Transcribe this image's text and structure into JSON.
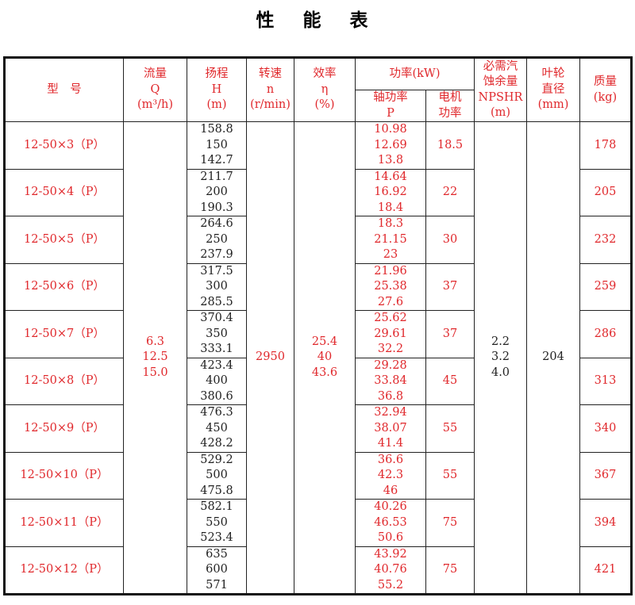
{
  "title": "性 能 表",
  "header": {
    "model": "型　号",
    "flow": [
      "流量",
      "Q",
      "(m³/h)"
    ],
    "head": [
      "扬程",
      "H",
      "(m)"
    ],
    "speed": [
      "转速",
      "n",
      "(r/min)"
    ],
    "efficiency": [
      "效率",
      "η",
      "(%)"
    ],
    "power": "功率(kW)",
    "shaft_power": [
      "轴功率",
      "P"
    ],
    "motor_power": [
      "电机",
      "功率"
    ],
    "npshr": [
      "必需汽",
      "蚀余量",
      "NPSHR",
      "(m)"
    ],
    "impeller": [
      "叶轮",
      "直径",
      "(mm)"
    ],
    "mass": [
      "质量",
      "(kg)"
    ]
  },
  "shared": {
    "flow": [
      "6.3",
      "12.5",
      "15.0"
    ],
    "speed": "2950",
    "efficiency": [
      "25.4",
      "40",
      "43.6"
    ],
    "npshr": [
      "2.2",
      "3.2",
      "4.0"
    ],
    "impeller": "204"
  },
  "rows": [
    {
      "model": "12-50×3（P）",
      "head": [
        "158.8",
        "150",
        "142.7"
      ],
      "shaft": [
        "10.98",
        "12.69",
        "13.8"
      ],
      "motor": "18.5",
      "mass": "178"
    },
    {
      "model": "12-50×4（P）",
      "head": [
        "211.7",
        "200",
        "190.3"
      ],
      "shaft": [
        "14.64",
        "16.92",
        "18.4"
      ],
      "motor": "22",
      "mass": "205"
    },
    {
      "model": "12-50×5（P）",
      "head": [
        "264.6",
        "250",
        "237.9"
      ],
      "shaft": [
        "18.3",
        "21.15",
        "23"
      ],
      "motor": "30",
      "mass": "232"
    },
    {
      "model": "12-50×6（P）",
      "head": [
        "317.5",
        "300",
        "285.5"
      ],
      "shaft": [
        "21.96",
        "25.38",
        "27.6"
      ],
      "motor": "37",
      "mass": "259"
    },
    {
      "model": "12-50×7（P）",
      "head": [
        "370.4",
        "350",
        "333.1"
      ],
      "shaft": [
        "25.62",
        "29.61",
        "32.2"
      ],
      "motor": "37",
      "mass": "286"
    },
    {
      "model": "12-50×8（P）",
      "head": [
        "423.4",
        "400",
        "380.6"
      ],
      "shaft": [
        "29.28",
        "33.84",
        "36.8"
      ],
      "motor": "45",
      "mass": "313"
    },
    {
      "model": "12-50×9（P）",
      "head": [
        "476.3",
        "450",
        "428.2"
      ],
      "shaft": [
        "32.94",
        "38.07",
        "41.4"
      ],
      "motor": "55",
      "mass": "340"
    },
    {
      "model": "12-50×10（P）",
      "head": [
        "529.2",
        "500",
        "475.8"
      ],
      "shaft": [
        "36.6",
        "42.3",
        "46"
      ],
      "motor": "55",
      "mass": "367"
    },
    {
      "model": "12-50×11（P）",
      "head": [
        "582.1",
        "550",
        "523.4"
      ],
      "shaft": [
        "40.26",
        "46.53",
        "50.6"
      ],
      "motor": "75",
      "mass": "394"
    },
    {
      "model": "12-50×12（P）",
      "head": [
        "635",
        "600",
        "571"
      ],
      "shaft": [
        "43.92",
        "40.76",
        "55.2"
      ],
      "motor": "75",
      "mass": "421"
    }
  ],
  "colors": {
    "text_red": "#e0282c",
    "text_black": "#222222",
    "border": "#222222"
  }
}
